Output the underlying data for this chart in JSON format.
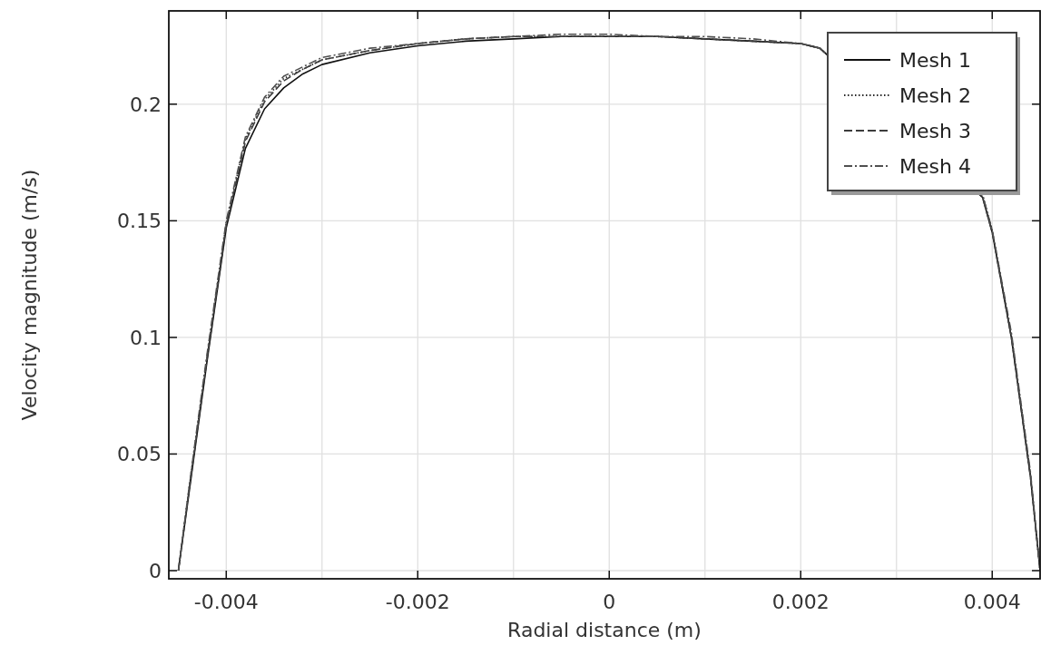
{
  "chart_data": {
    "type": "line",
    "xlabel": "Radial distance (m)",
    "ylabel": "Velocity magnitude (m/s)",
    "x": [
      -0.0045,
      -0.0044,
      -0.0043,
      -0.0042,
      -0.004,
      -0.0038,
      -0.0036,
      -0.0034,
      -0.0032,
      -0.003,
      -0.0025,
      -0.002,
      -0.0015,
      -0.001,
      -0.0005,
      0,
      0.0005,
      0.001,
      0.0015,
      0.002,
      0.0022,
      0.0039,
      0.004,
      0.0042,
      0.0043,
      0.0044,
      0.0045
    ],
    "series": [
      {
        "name": "Mesh 1",
        "color": "#111111",
        "line_style": "solid",
        "values": [
          0,
          0.03,
          0.06,
          0.09,
          0.147,
          0.181,
          0.198,
          0.207,
          0.213,
          0.217,
          0.222,
          0.225,
          0.227,
          0.228,
          0.229,
          0.229,
          0.229,
          0.228,
          0.227,
          0.226,
          0.224,
          0.16,
          0.145,
          0.1,
          0.07,
          0.04,
          0
        ]
      },
      {
        "name": "Mesh 2",
        "color": "#2a2a2a",
        "line_style": "dotted",
        "values": [
          0,
          0.032,
          0.062,
          0.092,
          0.149,
          0.185,
          0.202,
          0.211,
          0.215,
          0.219,
          0.223,
          0.226,
          0.228,
          0.229,
          0.229,
          0.229,
          0.229,
          0.228,
          0.227,
          0.226,
          0.224,
          0.161,
          0.146,
          0.101,
          0.071,
          0.041,
          0
        ]
      },
      {
        "name": "Mesh 3",
        "color": "#3c3c3c",
        "line_style": "dashed",
        "values": [
          0,
          0.031,
          0.061,
          0.091,
          0.148,
          0.184,
          0.201,
          0.21,
          0.215,
          0.219,
          0.223,
          0.226,
          0.228,
          0.229,
          0.229,
          0.229,
          0.229,
          0.228,
          0.227,
          0.226,
          0.224,
          0.16,
          0.145,
          0.1,
          0.07,
          0.04,
          0
        ]
      },
      {
        "name": "Mesh 4",
        "color": "#505050",
        "line_style": "dashdot",
        "values": [
          0,
          0.032,
          0.063,
          0.093,
          0.15,
          0.186,
          0.203,
          0.212,
          0.216,
          0.22,
          0.224,
          0.226,
          0.228,
          0.229,
          0.23,
          0.23,
          0.229,
          0.229,
          0.228,
          0.226,
          0.224,
          0.161,
          0.146,
          0.102,
          0.072,
          0.042,
          0
        ]
      }
    ],
    "xlim": [
      -0.0046,
      0.0045
    ],
    "ylim": [
      -0.0035,
      0.24
    ],
    "xticks": [
      {
        "value": -0.004,
        "label": "-0.004"
      },
      {
        "value": -0.003,
        "label": null
      },
      {
        "value": -0.002,
        "label": "-0.002"
      },
      {
        "value": -0.001,
        "label": null
      },
      0,
      {
        "value": 0.001,
        "label": null
      },
      {
        "value": 0.002,
        "label": "0.002"
      },
      {
        "value": 0.003,
        "label": null
      },
      {
        "value": 0.004,
        "label": "0.004"
      }
    ],
    "yticks": [
      0,
      0.05,
      0.1,
      0.15,
      0.2
    ],
    "grid": true,
    "legend": "top right"
  }
}
